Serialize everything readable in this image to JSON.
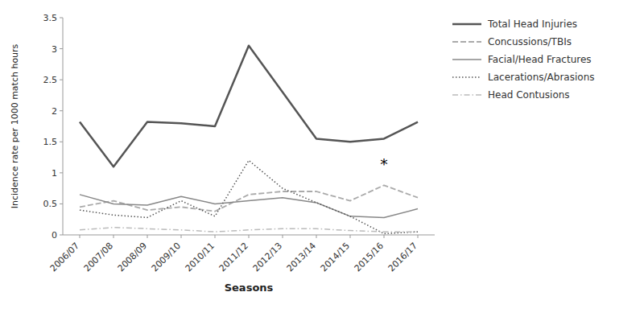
{
  "chart_data": {
    "type": "line",
    "xlabel": "Seasons",
    "ylabel": "Incidence rate per 1000 match hours",
    "categories": [
      "2006/07",
      "2007/08",
      "2008/09",
      "2009/10",
      "2010/11",
      "2011/12",
      "2012/13",
      "2013/14",
      "2014/15",
      "2015/16",
      "2016/17"
    ],
    "series": [
      {
        "name": "Total Head Injuries",
        "color": "#555555",
        "line_style": "solid",
        "values": [
          1.82,
          1.1,
          1.82,
          1.8,
          1.75,
          3.05,
          2.3,
          1.55,
          1.5,
          1.55,
          1.82
        ]
      },
      {
        "name": "Concussions/TBIs",
        "color": "#aaaaaa",
        "line_style": "dashed",
        "values": [
          0.45,
          0.55,
          0.4,
          0.45,
          0.38,
          0.65,
          0.7,
          0.7,
          0.55,
          0.8,
          0.6
        ]
      },
      {
        "name": "Facial/Head Fractures",
        "color": "#888888",
        "line_style": "solid",
        "values": [
          0.65,
          0.5,
          0.48,
          0.62,
          0.5,
          0.55,
          0.6,
          0.52,
          0.3,
          0.28,
          0.42
        ]
      },
      {
        "name": "Lacerations/Abrasions",
        "color": "#555555",
        "line_style": "dotted",
        "values": [
          0.4,
          0.32,
          0.28,
          0.55,
          0.3,
          1.2,
          0.75,
          0.52,
          0.3,
          0.02,
          0.05
        ]
      },
      {
        "name": "Head Contusions",
        "color": "#bbbbbb",
        "line_style": "dashdot",
        "values": [
          0.08,
          0.12,
          0.1,
          0.08,
          0.05,
          0.08,
          0.1,
          0.1,
          0.07,
          0.05,
          0.05
        ]
      }
    ],
    "annotations": [
      {
        "text": "*",
        "x": "2015/16",
        "y": 1.05
      }
    ],
    "ylim": [
      0,
      3.5
    ],
    "yticks": [
      0,
      0.5,
      1.0,
      1.5,
      2.0,
      2.5,
      3.0,
      3.5
    ],
    "grid": false,
    "legend": "right"
  }
}
